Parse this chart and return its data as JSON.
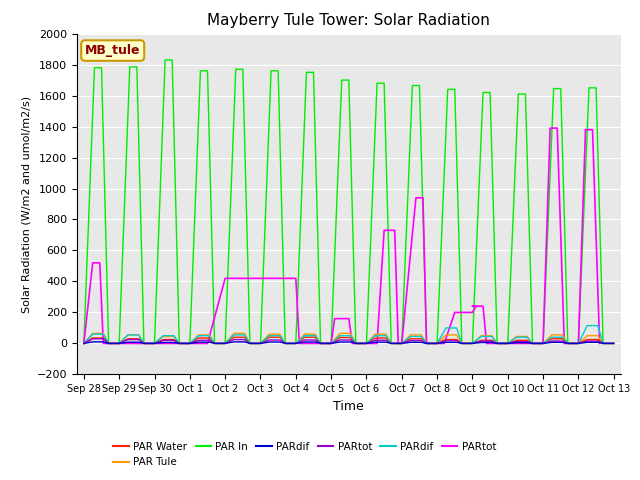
{
  "title": "Mayberry Tule Tower: Solar Radiation",
  "ylabel": "Solar Radiation (W/m2 and umol/m2/s)",
  "xlabel": "Time",
  "ylim": [
    -200,
    2000
  ],
  "plot_bg_color": "#e8e8e8",
  "fig_bg_color": "#ffffff",
  "annotation_text": "MB_tule",
  "annotation_bg": "#ffffcc",
  "annotation_border": "#cc9900",
  "xtick_labels": [
    "Sep 28",
    "Sep 29",
    "Sep 30",
    "Oct 1",
    "Oct 2",
    "Oct 3",
    "Oct 4",
    "Oct 5",
    "Oct 6",
    "Oct 7",
    "Oct 8",
    "Oct 9",
    "Oct 10",
    "Oct 11",
    "Oct 12",
    "Oct 13"
  ],
  "ytick_vals": [
    -200,
    0,
    200,
    400,
    600,
    800,
    1000,
    1200,
    1400,
    1600,
    1800,
    2000
  ],
  "green_x": [
    0.0,
    0.3,
    0.5,
    0.7,
    1.0,
    1.3,
    1.5,
    1.7,
    2.0,
    2.3,
    2.5,
    2.7,
    3.0,
    3.3,
    3.5,
    3.7,
    4.0,
    4.3,
    4.5,
    4.7,
    5.0,
    5.3,
    5.5,
    5.7,
    6.0,
    6.3,
    6.5,
    6.7,
    7.0,
    7.3,
    7.5,
    7.7,
    8.0,
    8.3,
    8.5,
    8.7,
    9.0,
    9.3,
    9.5,
    9.7,
    10.0,
    10.3,
    10.5,
    10.7,
    11.0,
    11.3,
    11.5,
    11.7,
    12.0,
    12.3,
    12.5,
    12.7,
    13.0,
    13.3,
    13.5,
    13.7,
    14.0,
    14.3,
    14.5,
    14.7,
    15.0
  ],
  "green_y": [
    0.0,
    1780,
    1780,
    0.0,
    0.0,
    1785,
    1785,
    0.0,
    0.0,
    1830,
    1830,
    0.0,
    0.0,
    1760,
    1760,
    0.0,
    0.0,
    1770,
    1770,
    0.0,
    0.0,
    1760,
    1760,
    0.0,
    0.0,
    1750,
    1750,
    0.0,
    0.0,
    1700,
    1700,
    0.0,
    0.0,
    1680,
    1680,
    0.0,
    0.0,
    1665,
    1665,
    0.0,
    0.0,
    1640,
    1640,
    0.0,
    0.0,
    1620,
    1620,
    0.0,
    0.0,
    1610,
    1610,
    0.0,
    0.0,
    1645,
    1645,
    0.0,
    0.0,
    1650,
    1650,
    0.0,
    0.0
  ],
  "magenta_x": [
    0.0,
    0.25,
    0.45,
    0.55,
    3.5,
    4.0,
    6.0,
    6.1,
    7.0,
    7.1,
    7.5,
    7.6,
    8.3,
    8.5,
    8.8,
    8.9,
    9.0,
    9.4,
    9.6,
    9.7,
    10.2,
    10.5,
    11.0,
    11.1,
    11.0,
    11.1,
    11.3,
    11.4,
    13.0,
    13.2,
    13.4,
    13.6,
    14.0,
    14.2,
    14.4,
    14.6
  ],
  "magenta_y": [
    0.0,
    520,
    520,
    0.0,
    0.0,
    420,
    420,
    0.0,
    0.0,
    160,
    160,
    0.0,
    0.0,
    730,
    730,
    0.0,
    0.0,
    940,
    940,
    0.0,
    0.0,
    200,
    200,
    240,
    240,
    240,
    240,
    0.0,
    0.0,
    1390,
    1390,
    0.0,
    0.0,
    1380,
    1380,
    0.0
  ],
  "orange_x": [
    0.0,
    0.25,
    0.55,
    0.7,
    1.0,
    1.25,
    1.55,
    1.7,
    2.0,
    2.25,
    2.55,
    2.7,
    3.0,
    3.25,
    3.55,
    3.7,
    4.0,
    4.25,
    4.55,
    4.7,
    5.0,
    5.25,
    5.55,
    5.7,
    6.0,
    6.25,
    6.55,
    6.7,
    7.0,
    7.25,
    7.55,
    7.7,
    8.0,
    8.25,
    8.55,
    8.7,
    9.0,
    9.25,
    9.55,
    9.7,
    10.0,
    10.25,
    10.55,
    10.7,
    11.0,
    11.25,
    11.55,
    11.7,
    12.0,
    12.25,
    12.55,
    12.7,
    13.0,
    13.25,
    13.55,
    13.7,
    14.0,
    14.25,
    14.55,
    14.7,
    15.0
  ],
  "orange_y": [
    0.0,
    65,
    65,
    0.0,
    0.0,
    55,
    55,
    0.0,
    0.0,
    45,
    45,
    0.0,
    0.0,
    55,
    55,
    0.0,
    0.0,
    65,
    65,
    0.0,
    0.0,
    60,
    60,
    0.0,
    0.0,
    60,
    60,
    0.0,
    0.0,
    65,
    65,
    0.0,
    0.0,
    60,
    60,
    0.0,
    0.0,
    55,
    55,
    0.0,
    0.0,
    55,
    55,
    0.0,
    0.0,
    50,
    50,
    0.0,
    0.0,
    45,
    45,
    0.0,
    0.0,
    55,
    55,
    0.0,
    0.0,
    50,
    50,
    0.0,
    0.0
  ],
  "red_x": [
    0.0,
    0.25,
    0.55,
    0.7,
    1.0,
    1.25,
    1.55,
    1.7,
    2.0,
    2.25,
    2.55,
    2.7,
    3.0,
    3.25,
    3.55,
    3.7,
    4.0,
    4.25,
    4.55,
    4.7,
    5.0,
    5.25,
    5.55,
    5.7,
    6.0,
    6.25,
    6.55,
    6.7,
    7.0,
    7.25,
    7.55,
    7.7,
    8.0,
    8.25,
    8.55,
    8.7,
    9.0,
    9.25,
    9.55,
    9.7,
    10.0,
    10.25,
    10.55,
    10.7,
    11.0,
    11.25,
    11.55,
    11.7,
    12.0,
    12.25,
    12.55,
    12.7,
    13.0,
    13.25,
    13.55,
    13.7,
    14.0,
    14.25,
    14.55,
    14.7,
    15.0
  ],
  "red_y": [
    0.0,
    35,
    35,
    0.0,
    0.0,
    30,
    30,
    0.0,
    0.0,
    25,
    25,
    0.0,
    0.0,
    35,
    35,
    0.0,
    0.0,
    40,
    40,
    0.0,
    0.0,
    40,
    40,
    0.0,
    0.0,
    40,
    40,
    0.0,
    0.0,
    38,
    38,
    0.0,
    0.0,
    35,
    35,
    0.0,
    0.0,
    30,
    30,
    0.0,
    0.0,
    25,
    25,
    0.0,
    0.0,
    20,
    20,
    0.0,
    0.0,
    20,
    20,
    0.0,
    0.0,
    30,
    30,
    0.0,
    0.0,
    25,
    25,
    0.0,
    0.0
  ],
  "cyan_x": [
    0.0,
    0.25,
    0.55,
    0.7,
    1.0,
    1.25,
    1.55,
    1.7,
    2.0,
    2.25,
    2.55,
    2.7,
    3.0,
    3.25,
    3.55,
    3.7,
    4.0,
    4.25,
    4.55,
    4.7,
    5.0,
    5.25,
    5.55,
    5.7,
    6.0,
    6.25,
    6.55,
    6.7,
    7.0,
    7.25,
    7.55,
    7.7,
    8.0,
    8.25,
    8.55,
    8.7,
    9.0,
    9.25,
    9.55,
    9.7,
    10.0,
    10.25,
    10.55,
    10.7,
    11.0,
    11.25,
    11.55,
    11.7,
    12.0,
    12.25,
    12.55,
    12.7,
    13.0,
    13.25,
    13.55,
    13.7,
    14.0,
    14.25,
    14.55,
    14.7,
    15.0
  ],
  "cyan_y": [
    0.0,
    60,
    60,
    0.0,
    0.0,
    55,
    55,
    0.0,
    0.0,
    50,
    50,
    0.0,
    0.0,
    50,
    50,
    0.0,
    0.0,
    55,
    55,
    0.0,
    0.0,
    50,
    50,
    0.0,
    0.0,
    50,
    50,
    0.0,
    0.0,
    50,
    50,
    0.0,
    0.0,
    50,
    50,
    0.0,
    0.0,
    45,
    45,
    0.0,
    0.0,
    100,
    100,
    0.0,
    0.0,
    45,
    45,
    0.0,
    0.0,
    40,
    40,
    0.0,
    0.0,
    40,
    40,
    0.0,
    0.0,
    115,
    115,
    0.0,
    0.0
  ],
  "purple_x": [
    0.0,
    0.25,
    0.55,
    0.7,
    1.0,
    1.25,
    1.55,
    1.7,
    2.0,
    2.25,
    2.55,
    2.7,
    3.0,
    3.25,
    3.55,
    3.7,
    4.0,
    4.25,
    4.55,
    4.7,
    5.0,
    5.25,
    5.55,
    5.7,
    6.0,
    6.25,
    6.55,
    6.7,
    7.0,
    7.25,
    7.55,
    7.7,
    8.0,
    8.25,
    8.55,
    8.7,
    9.0,
    9.25,
    9.55,
    9.7,
    10.0,
    10.25,
    10.55,
    10.7,
    11.0,
    11.25,
    11.55,
    11.7,
    12.0,
    12.25,
    12.55,
    12.7,
    13.0,
    13.25,
    13.55,
    13.7,
    14.0,
    14.25,
    14.55,
    14.7,
    15.0
  ],
  "purple_y": [
    0.0,
    30,
    30,
    0.0,
    0.0,
    25,
    25,
    0.0,
    0.0,
    20,
    20,
    0.0,
    0.0,
    20,
    20,
    0.0,
    0.0,
    25,
    25,
    0.0,
    0.0,
    22,
    22,
    0.0,
    0.0,
    22,
    22,
    0.0,
    0.0,
    22,
    22,
    0.0,
    0.0,
    20,
    20,
    0.0,
    0.0,
    18,
    18,
    0.0,
    0.0,
    18,
    18,
    0.0,
    0.0,
    15,
    15,
    0.0,
    0.0,
    12,
    12,
    0.0,
    0.0,
    15,
    15,
    0.0,
    0.0,
    15,
    15,
    0.0,
    0.0
  ],
  "blue_x": [
    0.0,
    0.25,
    0.55,
    0.7,
    1.0,
    1.25,
    1.55,
    1.7,
    2.0,
    2.25,
    2.55,
    2.7,
    3.0,
    3.25,
    3.55,
    3.7,
    4.0,
    4.25,
    4.55,
    4.7,
    5.0,
    5.25,
    5.55,
    5.7,
    6.0,
    6.25,
    6.55,
    6.7,
    7.0,
    7.25,
    7.55,
    7.7,
    8.0,
    8.25,
    8.55,
    8.7,
    9.0,
    9.25,
    9.55,
    9.7,
    10.0,
    10.25,
    10.55,
    10.7,
    11.0,
    11.25,
    11.55,
    11.7,
    12.0,
    12.25,
    12.55,
    12.7,
    13.0,
    13.25,
    13.55,
    13.7,
    14.0,
    14.25,
    14.55,
    14.7,
    15.0
  ],
  "blue_y": [
    0.0,
    10,
    10,
    0.0,
    0.0,
    8,
    8,
    0.0,
    0.0,
    6,
    6,
    0.0,
    0.0,
    8,
    8,
    0.0,
    0.0,
    10,
    10,
    0.0,
    0.0,
    9,
    9,
    0.0,
    0.0,
    9,
    9,
    0.0,
    0.0,
    9,
    9,
    0.0,
    0.0,
    8,
    8,
    0.0,
    0.0,
    7,
    7,
    0.0,
    0.0,
    7,
    7,
    0.0,
    0.0,
    6,
    6,
    0.0,
    0.0,
    5,
    5,
    0.0,
    0.0,
    7,
    7,
    0.0,
    0.0,
    7,
    7,
    0.0,
    0.0
  ]
}
